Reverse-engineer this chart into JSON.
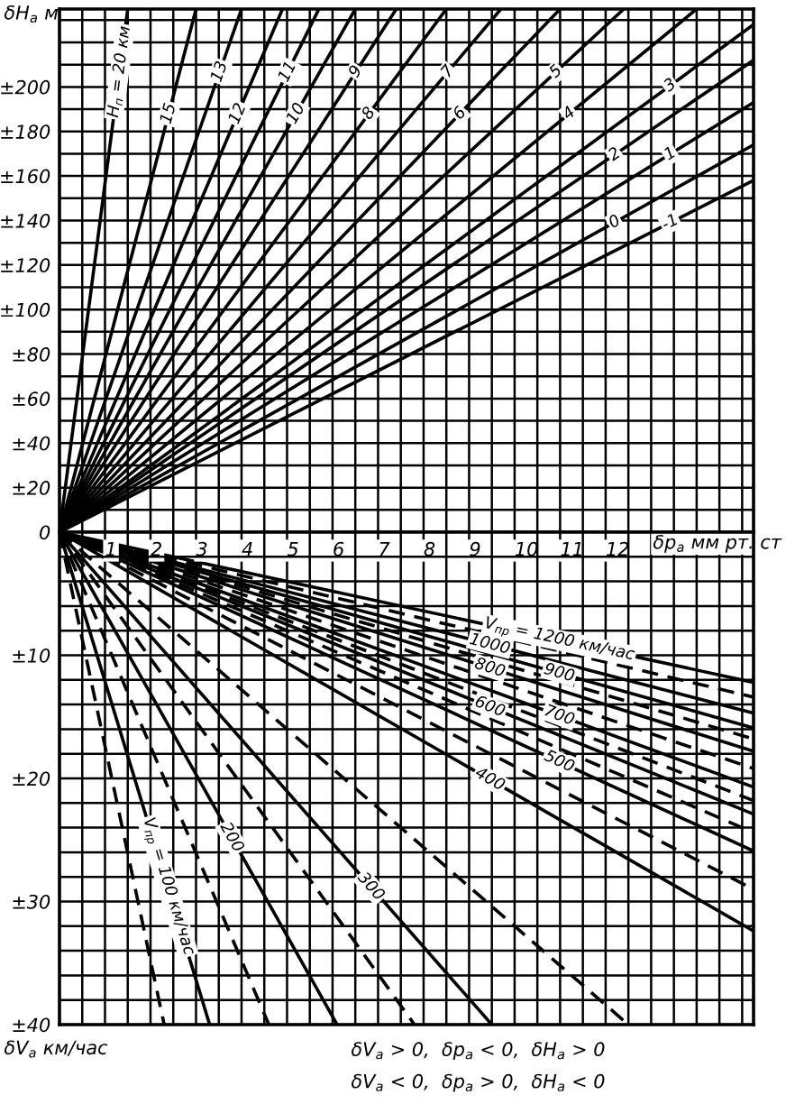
{
  "chart_data": [
    {
      "type": "line",
      "ylabel": "δH$_{a}$ м",
      "xlim": [
        0,
        15.25
      ],
      "ylim": [
        0,
        235
      ],
      "grid": true,
      "tick_labels": "y",
      "xticks": [
        {
          "value": 0.5,
          "label": null
        },
        {
          "value": 1,
          "label": null
        },
        {
          "value": 1.5,
          "label": null
        },
        {
          "value": 2,
          "label": null
        },
        {
          "value": 2.5,
          "label": null
        },
        {
          "value": 3,
          "label": null
        },
        {
          "value": 3.5,
          "label": null
        },
        {
          "value": 4,
          "label": null
        },
        {
          "value": 4.5,
          "label": null
        },
        {
          "value": 5,
          "label": null
        },
        {
          "value": 5.5,
          "label": null
        },
        {
          "value": 6,
          "label": null
        },
        {
          "value": 6.5,
          "label": null
        },
        {
          "value": 7,
          "label": null
        },
        {
          "value": 7.5,
          "label": null
        },
        {
          "value": 8,
          "label": null
        },
        {
          "value": 8.5,
          "label": null
        },
        {
          "value": 9,
          "label": null
        },
        {
          "value": 9.5,
          "label": null
        },
        {
          "value": 10,
          "label": null
        },
        {
          "value": 10.5,
          "label": null
        },
        {
          "value": 11,
          "label": null
        },
        {
          "value": 11.5,
          "label": null
        },
        {
          "value": 12,
          "label": null
        },
        {
          "value": 12.5,
          "label": null
        },
        {
          "value": 13,
          "label": null
        },
        {
          "value": 13.5,
          "label": null
        },
        {
          "value": 14,
          "label": null
        },
        {
          "value": 14.5,
          "label": null
        },
        {
          "value": 15,
          "label": null
        }
      ],
      "yticks": [
        0,
        {
          "value": 10,
          "label": null
        },
        {
          "value": 20,
          "label": "±20"
        },
        {
          "value": 30,
          "label": null
        },
        {
          "value": 40,
          "label": "±40"
        },
        {
          "value": 50,
          "label": null
        },
        {
          "value": 60,
          "label": "±60"
        },
        {
          "value": 70,
          "label": null
        },
        {
          "value": 80,
          "label": "±80"
        },
        {
          "value": 90,
          "label": null
        },
        {
          "value": 100,
          "label": "±100"
        },
        {
          "value": 110,
          "label": null
        },
        {
          "value": 120,
          "label": "±120"
        },
        {
          "value": 130,
          "label": null
        },
        {
          "value": 140,
          "label": "±140"
        },
        {
          "value": 150,
          "label": null
        },
        {
          "value": 160,
          "label": "±160"
        },
        {
          "value": 170,
          "label": null
        },
        {
          "value": 180,
          "label": "±180"
        },
        {
          "value": 190,
          "label": null
        },
        {
          "value": 200,
          "label": "±200"
        },
        {
          "value": 210,
          "label": null
        },
        {
          "value": 220,
          "label": null
        },
        {
          "value": 230,
          "label": null
        }
      ],
      "series": [
        {
          "name": "H$_{п}$ = 20 км",
          "color": "#000000",
          "line_style": "solid",
          "x": [
            0,
            1.5
          ],
          "values": [
            0,
            235
          ]
        },
        {
          "name": "15",
          "color": "#000000",
          "line_style": "solid",
          "x": [
            0,
            3.0
          ],
          "values": [
            0,
            235
          ]
        },
        {
          "name": "13",
          "color": "#000000",
          "line_style": "solid",
          "x": [
            0,
            4.0
          ],
          "values": [
            0,
            235
          ]
        },
        {
          "name": "12",
          "color": "#000000",
          "line_style": "solid",
          "x": [
            0,
            4.9
          ],
          "values": [
            0,
            235
          ]
        },
        {
          "name": "11",
          "color": "#000000",
          "line_style": "solid",
          "x": [
            0,
            5.7
          ],
          "values": [
            0,
            235
          ]
        },
        {
          "name": "10",
          "color": "#000000",
          "line_style": "solid",
          "x": [
            0,
            6.5
          ],
          "values": [
            0,
            235
          ]
        },
        {
          "name": "9",
          "color": "#000000",
          "line_style": "solid",
          "x": [
            0,
            7.4
          ],
          "values": [
            0,
            235
          ]
        },
        {
          "name": "8",
          "color": "#000000",
          "line_style": "solid",
          "x": [
            0,
            8.5
          ],
          "values": [
            0,
            235
          ]
        },
        {
          "name": "7",
          "color": "#000000",
          "line_style": "solid",
          "x": [
            0,
            9.7
          ],
          "values": [
            0,
            235
          ]
        },
        {
          "name": "6",
          "color": "#000000",
          "line_style": "solid",
          "x": [
            0,
            11.0
          ],
          "values": [
            0,
            235
          ]
        },
        {
          "name": "5",
          "color": "#000000",
          "line_style": "solid",
          "x": [
            0,
            12.4
          ],
          "values": [
            0,
            235
          ]
        },
        {
          "name": "4",
          "color": "#000000",
          "line_style": "solid",
          "x": [
            0,
            14.0
          ],
          "values": [
            0,
            235
          ]
        },
        {
          "name": "3",
          "color": "#000000",
          "line_style": "solid",
          "x": [
            0,
            15.25
          ],
          "values": [
            0,
            228
          ]
        },
        {
          "name": "2",
          "color": "#000000",
          "line_style": "solid",
          "x": [
            0,
            15.25
          ],
          "values": [
            0,
            212
          ]
        },
        {
          "name": "1",
          "color": "#000000",
          "line_style": "solid",
          "x": [
            0,
            15.25
          ],
          "values": [
            0,
            193
          ]
        },
        {
          "name": "0",
          "color": "#000000",
          "line_style": "solid",
          "x": [
            0,
            15.25
          ],
          "values": [
            0,
            174
          ]
        },
        {
          "name": "-1",
          "color": "#000000",
          "line_style": "solid",
          "x": [
            0,
            15.25
          ],
          "values": [
            0,
            158
          ]
        }
      ]
    },
    {
      "type": "line",
      "xlabel": "δp$_{a}$ мм рт. ст",
      "ylabel": "δV$_{a}$ км/час",
      "xlim": [
        0,
        15.25
      ],
      "ylim": [
        40,
        0
      ],
      "grid": true,
      "xticks": [
        {
          "value": 0.5,
          "label": null
        },
        1,
        {
          "value": 1.5,
          "label": null
        },
        2,
        {
          "value": 2.5,
          "label": null
        },
        3,
        {
          "value": 3.5,
          "label": null
        },
        4,
        {
          "value": 4.5,
          "label": null
        },
        5,
        {
          "value": 5.5,
          "label": null
        },
        6,
        {
          "value": 6.5,
          "label": null
        },
        7,
        {
          "value": 7.5,
          "label": null
        },
        8,
        {
          "value": 8.5,
          "label": null
        },
        9,
        {
          "value": 9.5,
          "label": null
        },
        10,
        {
          "value": 10.5,
          "label": null
        },
        11,
        {
          "value": 11.5,
          "label": null
        },
        12,
        {
          "value": 12.5,
          "label": null
        },
        {
          "value": 13,
          "label": null
        },
        {
          "value": 13.5,
          "label": null
        },
        {
          "value": 14,
          "label": null
        },
        {
          "value": 14.5,
          "label": null
        },
        {
          "value": 15,
          "label": null
        }
      ],
      "yticks": [
        {
          "value": 2,
          "label": null
        },
        {
          "value": 4,
          "label": null
        },
        {
          "value": 6,
          "label": null
        },
        {
          "value": 8,
          "label": null
        },
        {
          "value": 10,
          "label": "±10"
        },
        {
          "value": 12,
          "label": null
        },
        {
          "value": 14,
          "label": null
        },
        {
          "value": 16,
          "label": null
        },
        {
          "value": 18,
          "label": null
        },
        {
          "value": 20,
          "label": "±20"
        },
        {
          "value": 22,
          "label": null
        },
        {
          "value": 24,
          "label": null
        },
        {
          "value": 26,
          "label": null
        },
        {
          "value": 28,
          "label": null
        },
        {
          "value": 30,
          "label": "±30"
        },
        {
          "value": 32,
          "label": null
        },
        {
          "value": 34,
          "label": null
        },
        {
          "value": 36,
          "label": null
        },
        {
          "value": 38,
          "label": null
        },
        {
          "value": 40,
          "label": "±40"
        }
      ],
      "annotations": [
        "δV$_{a}$ > 0,  δp$_{a}$ < 0,  δH$_{a}$ > 0",
        "δV$_{a}$ < 0,  δp$_{a}$ > 0,  δH$_{a}$ < 0"
      ],
      "series": [
        {
          "name": "V$_{пр}$ = 1200 км/час",
          "color": "#000000",
          "line_style": "solid",
          "x": [
            0,
            15.25
          ],
          "values": [
            0,
            12.2
          ]
        },
        {
          "color": "#000000",
          "line_style": "dashed",
          "x": [
            0,
            15.25
          ],
          "values": [
            0,
            13.4
          ]
        },
        {
          "name": "1000",
          "color": "#000000",
          "line_style": "solid",
          "x": [
            0,
            15.25
          ],
          "values": [
            0,
            14.7
          ]
        },
        {
          "name": "900",
          "color": "#000000",
          "line_style": "solid",
          "x": [
            0,
            15.25
          ],
          "values": [
            0,
            15.9
          ]
        },
        {
          "color": "#000000",
          "line_style": "dashed",
          "x": [
            0,
            15.25
          ],
          "values": [
            0,
            16.8
          ]
        },
        {
          "name": "800",
          "color": "#000000",
          "line_style": "solid",
          "x": [
            0,
            15.25
          ],
          "values": [
            0,
            17.8
          ]
        },
        {
          "color": "#000000",
          "line_style": "dashed",
          "x": [
            0,
            15.25
          ],
          "values": [
            0,
            19.2
          ]
        },
        {
          "name": "700",
          "color": "#000000",
          "line_style": "solid",
          "x": [
            0,
            15.25
          ],
          "values": [
            0,
            20.7
          ]
        },
        {
          "color": "#000000",
          "line_style": "dashed",
          "x": [
            0,
            15.25
          ],
          "values": [
            0,
            21.8
          ]
        },
        {
          "name": "600",
          "color": "#000000",
          "line_style": "solid",
          "x": [
            0,
            15.25
          ],
          "values": [
            0,
            22.9
          ]
        },
        {
          "color": "#000000",
          "line_style": "dashed",
          "x": [
            0,
            15.25
          ],
          "values": [
            0,
            24.4
          ]
        },
        {
          "name": "500",
          "color": "#000000",
          "line_style": "solid",
          "x": [
            0,
            15.25
          ],
          "values": [
            0,
            25.9
          ]
        },
        {
          "color": "#000000",
          "line_style": "dashed",
          "x": [
            0,
            15.25
          ],
          "values": [
            0,
            29
          ]
        },
        {
          "name": "400",
          "color": "#000000",
          "line_style": "solid",
          "x": [
            0,
            15.25
          ],
          "values": [
            0,
            32.4
          ]
        },
        {
          "color": "#000000",
          "line_style": "dashed",
          "x": [
            0,
            12.5
          ],
          "values": [
            0,
            40
          ]
        },
        {
          "name": "300",
          "color": "#000000",
          "line_style": "solid",
          "x": [
            0,
            9.5
          ],
          "values": [
            0,
            40
          ]
        },
        {
          "color": "#000000",
          "line_style": "dashed",
          "x": [
            0,
            7.8
          ],
          "values": [
            0,
            40
          ]
        },
        {
          "name": "200",
          "color": "#000000",
          "line_style": "solid",
          "x": [
            0,
            6.1
          ],
          "values": [
            0,
            40
          ]
        },
        {
          "color": "#000000",
          "line_style": "dashed",
          "x": [
            0,
            4.6
          ],
          "values": [
            0,
            40
          ]
        },
        {
          "name": "V$_{пр}$ = 100 км/час",
          "color": "#000000",
          "line_style": "solid",
          "x": [
            0,
            3.3
          ],
          "values": [
            0,
            40
          ]
        },
        {
          "color": "#000000",
          "line_style": "dashed",
          "x": [
            0,
            2.3
          ],
          "values": [
            0,
            40
          ]
        }
      ]
    }
  ]
}
